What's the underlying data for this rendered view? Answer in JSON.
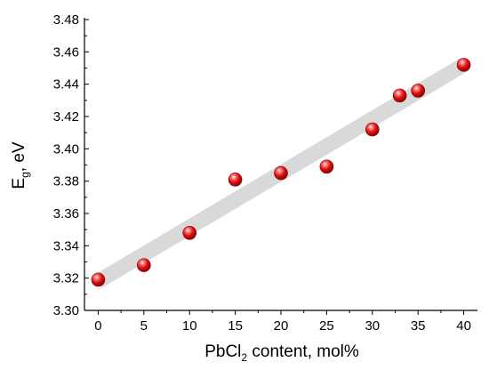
{
  "chart_data": {
    "type": "scatter",
    "title": "",
    "xlabel": {
      "main": "PbCl",
      "sub": "2",
      "rest": " content, mol%"
    },
    "ylabel": {
      "main": "E",
      "sub": "g",
      "rest": ", eV"
    },
    "xlim": [
      -1.5,
      41.5
    ],
    "ylim": [
      3.3,
      3.48
    ],
    "xticks": [
      "0",
      "5",
      "10",
      "15",
      "20",
      "25",
      "30",
      "35",
      "40"
    ],
    "yticks": [
      "3.30",
      "3.32",
      "3.34",
      "3.36",
      "3.38",
      "3.40",
      "3.42",
      "3.44",
      "3.46",
      "3.48"
    ],
    "series": [
      {
        "x": [
          0,
          5,
          10,
          15,
          20,
          25,
          30,
          33,
          35,
          40
        ],
        "y": [
          3.319,
          3.328,
          3.348,
          3.381,
          3.385,
          3.389,
          3.412,
          3.433,
          3.436,
          3.452
        ],
        "color": "#e01010"
      }
    ],
    "trend_line": {
      "x": [
        0,
        40
      ],
      "y": [
        3.318,
        3.452
      ],
      "color": "#d9d9d9"
    },
    "grid": false,
    "legend": "none"
  }
}
